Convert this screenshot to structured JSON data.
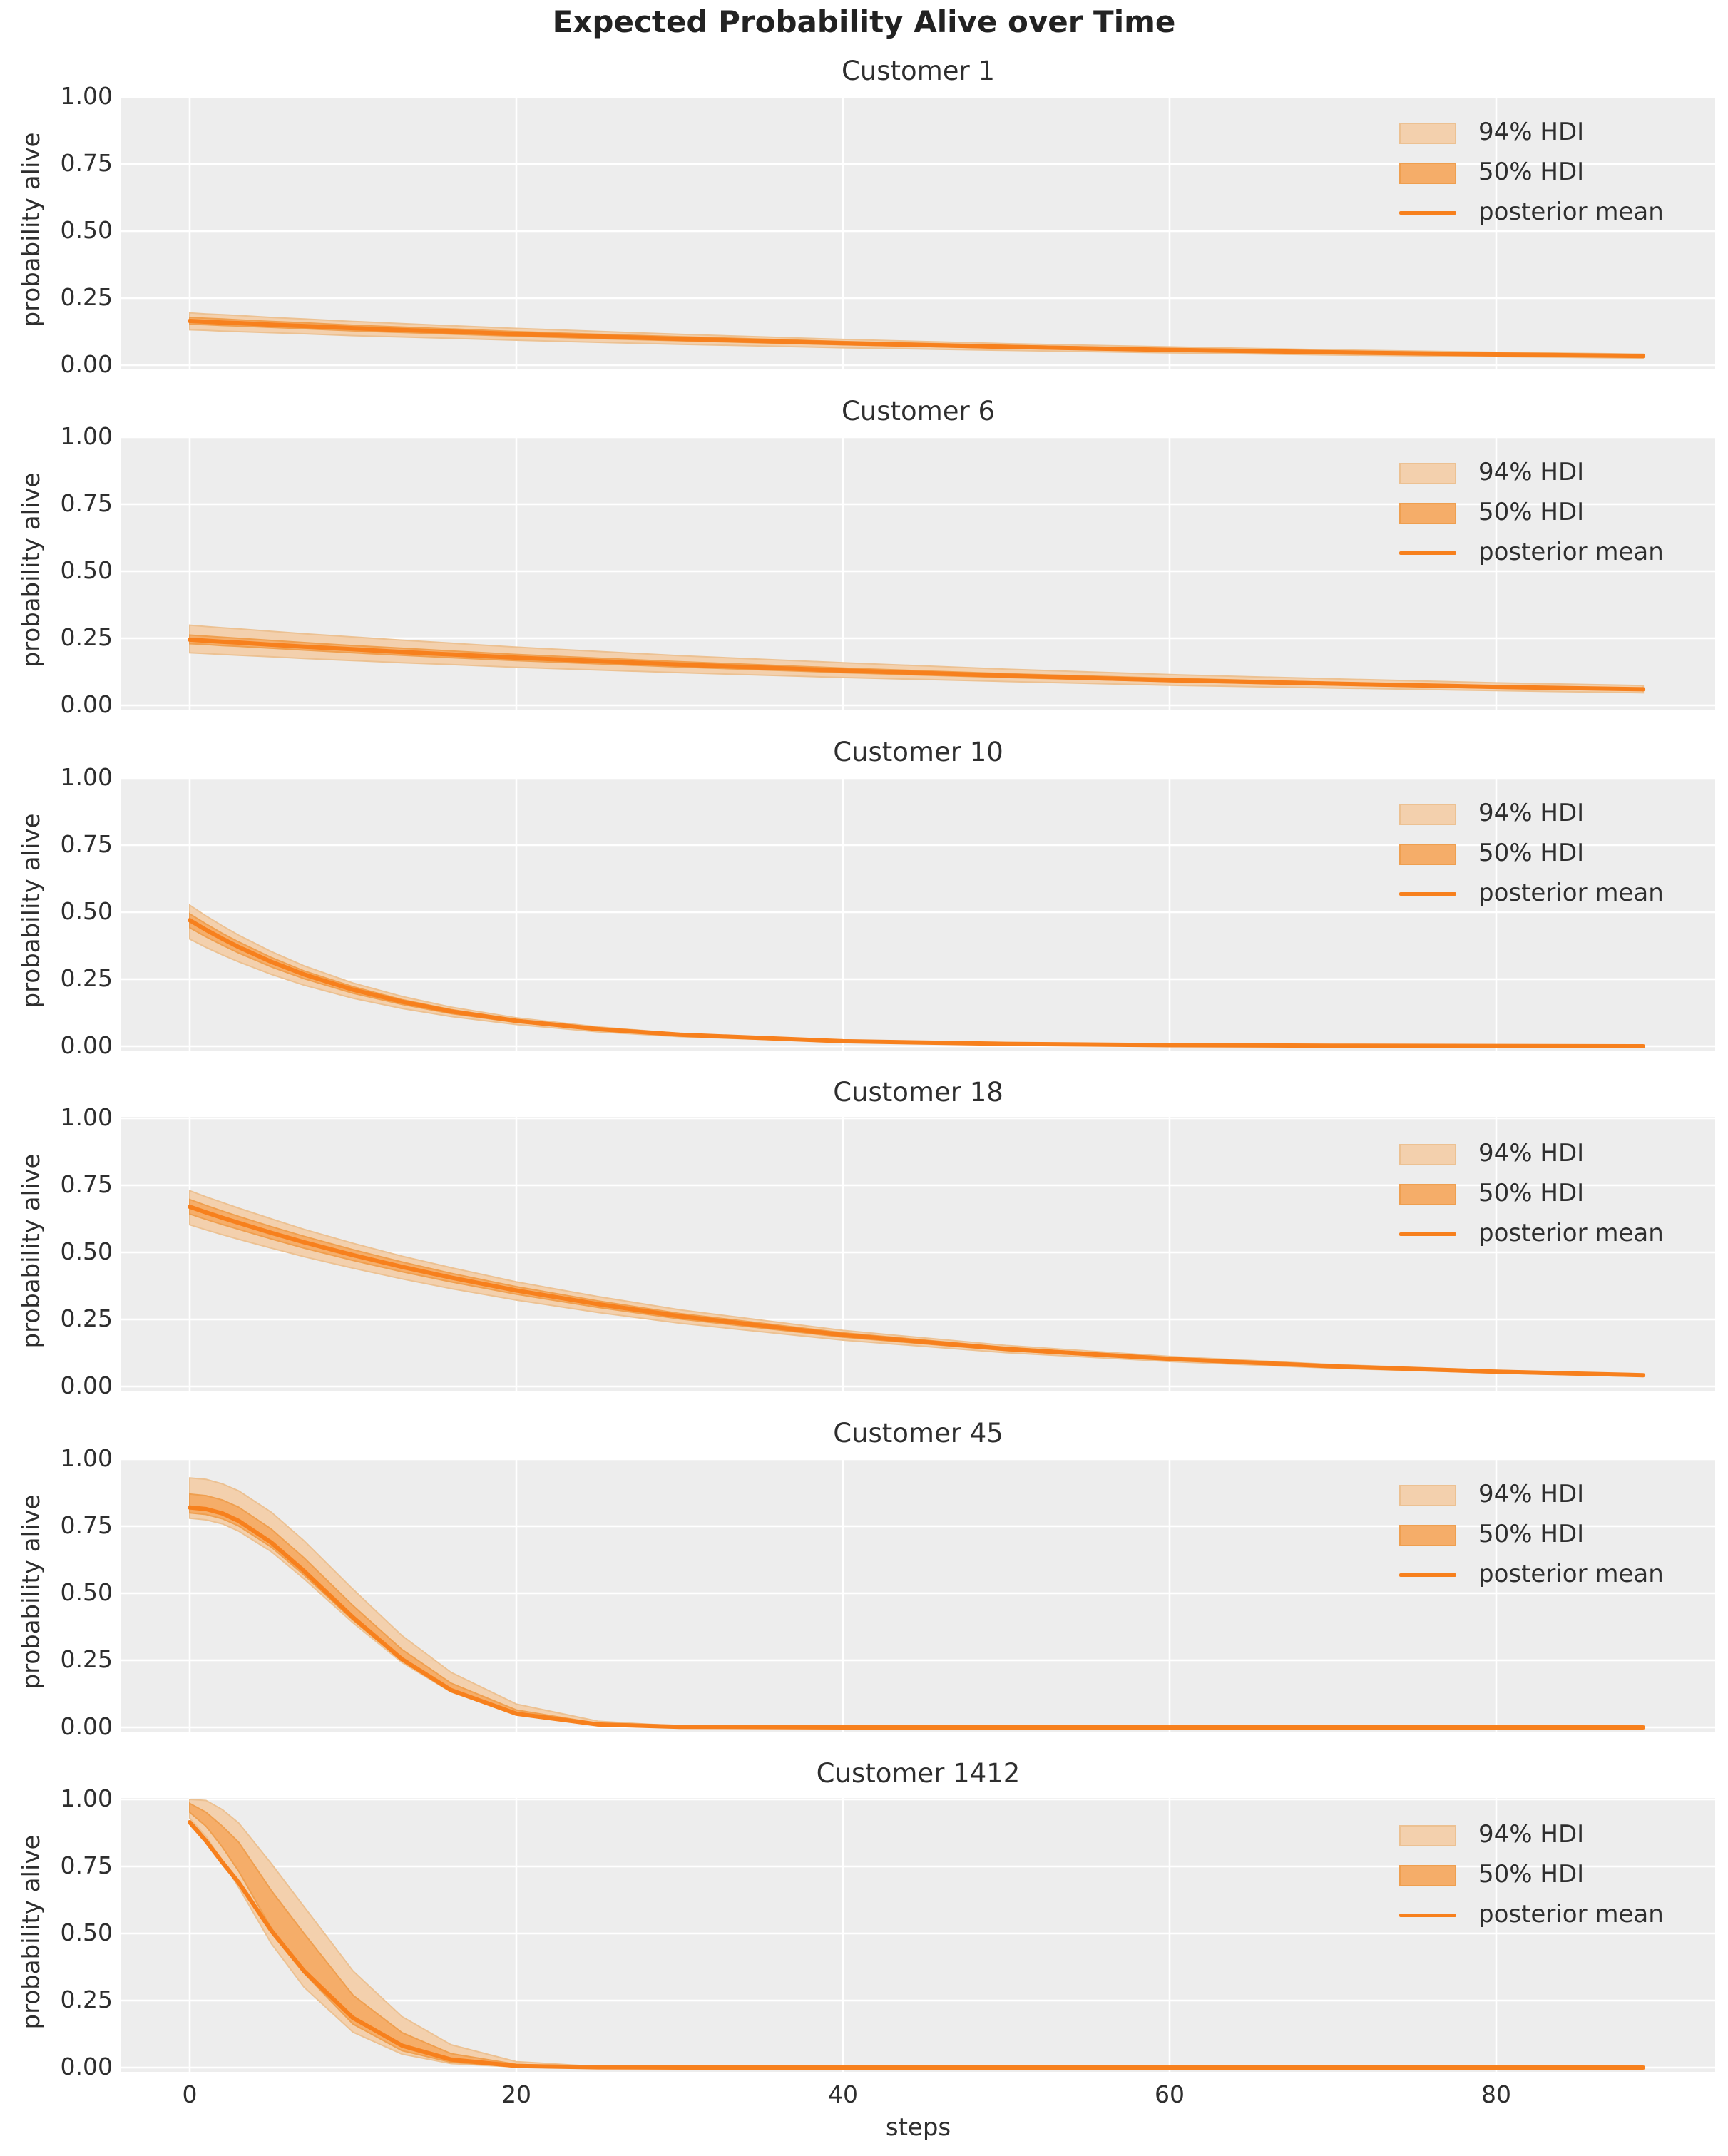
{
  "title": "Expected Probability Alive over Time",
  "xlabel": "steps",
  "ylabel": "probability alive",
  "legend": {
    "hdi94": "94% HDI",
    "hdi50": "50% HDI",
    "mean": "posterior mean"
  },
  "colors": {
    "posterior_mean": "#f7801d",
    "hdi50_fill": "#f5ad69",
    "hdi50_edge": "#ef9f4f",
    "hdi94_fill": "#f3d0ad",
    "hdi94_edge": "#ecc192",
    "axes_background": "#ededed",
    "grid": "#ffffff",
    "text": "#2e2e2e"
  },
  "y_ticks": [
    {
      "label": "1.00",
      "value": 1.0
    },
    {
      "label": "0.75",
      "value": 0.75
    },
    {
      "label": "0.50",
      "value": 0.5
    },
    {
      "label": "0.25",
      "value": 0.25
    },
    {
      "label": "0.00",
      "value": 0.0
    }
  ],
  "x_ticks": [
    {
      "label": "0",
      "value": 0
    },
    {
      "label": "20",
      "value": 20
    },
    {
      "label": "40",
      "value": 40
    },
    {
      "label": "60",
      "value": 60
    },
    {
      "label": "80",
      "value": 80
    }
  ],
  "chart_data": [
    {
      "type": "line",
      "title": "Customer 1",
      "xlabel": "steps",
      "ylabel": "probability alive",
      "xlim": [
        0,
        89
      ],
      "ylim": [
        0,
        1
      ],
      "legend_entries": [
        "94% HDI",
        "50% HDI",
        "posterior mean"
      ],
      "steps": [
        0,
        1,
        2,
        3,
        5,
        7,
        10,
        13,
        16,
        20,
        25,
        30,
        40,
        50,
        60,
        70,
        80,
        89
      ],
      "posterior_mean": [
        0.165,
        0.162,
        0.159,
        0.157,
        0.151,
        0.146,
        0.138,
        0.131,
        0.125,
        0.116,
        0.107,
        0.098,
        0.082,
        0.068,
        0.057,
        0.048,
        0.04,
        0.034
      ],
      "hdi94_lower": [
        0.132,
        0.13,
        0.127,
        0.125,
        0.121,
        0.117,
        0.11,
        0.105,
        0.1,
        0.093,
        0.085,
        0.078,
        0.065,
        0.055,
        0.046,
        0.038,
        0.032,
        0.026
      ],
      "hdi94_upper": [
        0.195,
        0.191,
        0.188,
        0.185,
        0.178,
        0.172,
        0.163,
        0.155,
        0.147,
        0.137,
        0.126,
        0.115,
        0.096,
        0.08,
        0.068,
        0.057,
        0.048,
        0.041
      ],
      "hdi50_lower": [
        0.153,
        0.151,
        0.148,
        0.146,
        0.141,
        0.136,
        0.128,
        0.122,
        0.116,
        0.108,
        0.099,
        0.091,
        0.076,
        0.063,
        0.053,
        0.045,
        0.037,
        0.031
      ],
      "hdi50_upper": [
        0.178,
        0.175,
        0.172,
        0.169,
        0.163,
        0.158,
        0.149,
        0.142,
        0.135,
        0.125,
        0.115,
        0.106,
        0.088,
        0.074,
        0.061,
        0.052,
        0.043,
        0.037
      ]
    },
    {
      "type": "line",
      "title": "Customer 6",
      "xlabel": "steps",
      "ylabel": "probability alive",
      "xlim": [
        0,
        89
      ],
      "ylim": [
        0,
        1
      ],
      "legend_entries": [
        "94% HDI",
        "50% HDI",
        "posterior mean"
      ],
      "steps": [
        0,
        1,
        2,
        3,
        5,
        7,
        10,
        13,
        16,
        20,
        25,
        30,
        40,
        50,
        60,
        70,
        80,
        89
      ],
      "posterior_mean": [
        0.245,
        0.241,
        0.237,
        0.234,
        0.226,
        0.219,
        0.209,
        0.199,
        0.19,
        0.178,
        0.165,
        0.152,
        0.13,
        0.111,
        0.094,
        0.081,
        0.069,
        0.06
      ],
      "hdi94_lower": [
        0.196,
        0.193,
        0.19,
        0.187,
        0.181,
        0.175,
        0.167,
        0.159,
        0.152,
        0.142,
        0.132,
        0.122,
        0.104,
        0.089,
        0.075,
        0.065,
        0.055,
        0.047
      ],
      "hdi94_upper": [
        0.299,
        0.294,
        0.289,
        0.285,
        0.276,
        0.267,
        0.255,
        0.243,
        0.232,
        0.217,
        0.201,
        0.185,
        0.159,
        0.135,
        0.115,
        0.099,
        0.084,
        0.074
      ],
      "hdi50_lower": [
        0.23,
        0.227,
        0.223,
        0.22,
        0.213,
        0.206,
        0.196,
        0.187,
        0.178,
        0.167,
        0.155,
        0.143,
        0.122,
        0.104,
        0.089,
        0.076,
        0.064,
        0.056
      ],
      "hdi50_upper": [
        0.262,
        0.258,
        0.254,
        0.25,
        0.242,
        0.234,
        0.223,
        0.213,
        0.203,
        0.19,
        0.176,
        0.163,
        0.139,
        0.118,
        0.101,
        0.086,
        0.073,
        0.064
      ]
    },
    {
      "type": "line",
      "title": "Customer 10",
      "xlabel": "steps",
      "ylabel": "probability alive",
      "xlim": [
        0,
        89
      ],
      "ylim": [
        0,
        1
      ],
      "legend_entries": [
        "94% HDI",
        "50% HDI",
        "posterior mean"
      ],
      "steps": [
        0,
        1,
        2,
        3,
        5,
        7,
        10,
        13,
        16,
        20,
        25,
        30,
        40,
        50,
        60,
        70,
        80,
        89
      ],
      "posterior_mean": [
        0.47,
        0.434,
        0.401,
        0.37,
        0.315,
        0.268,
        0.211,
        0.166,
        0.13,
        0.095,
        0.064,
        0.043,
        0.019,
        0.009,
        0.004,
        0.002,
        0.001,
        0.0
      ],
      "hdi94_lower": [
        0.4,
        0.369,
        0.341,
        0.315,
        0.268,
        0.228,
        0.179,
        0.141,
        0.111,
        0.081,
        0.054,
        0.036,
        0.016,
        0.008,
        0.003,
        0.002,
        0.001,
        0.0
      ],
      "hdi94_upper": [
        0.526,
        0.486,
        0.449,
        0.414,
        0.353,
        0.3,
        0.236,
        0.186,
        0.146,
        0.106,
        0.072,
        0.048,
        0.021,
        0.01,
        0.004,
        0.002,
        0.001,
        0.0
      ],
      "hdi50_lower": [
        0.442,
        0.408,
        0.377,
        0.348,
        0.296,
        0.252,
        0.198,
        0.156,
        0.122,
        0.089,
        0.06,
        0.04,
        0.018,
        0.008,
        0.004,
        0.002,
        0.001,
        0.0
      ],
      "hdi50_upper": [
        0.494,
        0.456,
        0.421,
        0.389,
        0.331,
        0.281,
        0.222,
        0.174,
        0.137,
        0.1,
        0.067,
        0.045,
        0.02,
        0.009,
        0.004,
        0.002,
        0.001,
        0.0
      ]
    },
    {
      "type": "line",
      "title": "Customer 18",
      "xlabel": "steps",
      "ylabel": "probability alive",
      "xlim": [
        0,
        89
      ],
      "ylim": [
        0,
        1
      ],
      "legend_entries": [
        "94% HDI",
        "50% HDI",
        "posterior mean"
      ],
      "steps": [
        0,
        1,
        2,
        3,
        5,
        7,
        10,
        13,
        16,
        20,
        25,
        30,
        40,
        50,
        60,
        70,
        80,
        89
      ],
      "posterior_mean": [
        0.67,
        0.649,
        0.629,
        0.61,
        0.573,
        0.538,
        0.49,
        0.446,
        0.406,
        0.358,
        0.307,
        0.262,
        0.192,
        0.14,
        0.103,
        0.075,
        0.055,
        0.042
      ],
      "hdi94_lower": [
        0.603,
        0.584,
        0.566,
        0.549,
        0.516,
        0.484,
        0.441,
        0.401,
        0.365,
        0.322,
        0.276,
        0.236,
        0.173,
        0.126,
        0.093,
        0.068,
        0.05,
        0.037
      ],
      "hdi94_upper": [
        0.73,
        0.707,
        0.686,
        0.665,
        0.625,
        0.586,
        0.534,
        0.486,
        0.443,
        0.39,
        0.335,
        0.286,
        0.209,
        0.153,
        0.112,
        0.082,
        0.06,
        0.046
      ],
      "hdi50_lower": [
        0.643,
        0.623,
        0.604,
        0.586,
        0.55,
        0.516,
        0.47,
        0.428,
        0.39,
        0.344,
        0.295,
        0.252,
        0.184,
        0.134,
        0.099,
        0.072,
        0.053,
        0.04
      ],
      "hdi50_upper": [
        0.697,
        0.675,
        0.654,
        0.634,
        0.596,
        0.56,
        0.51,
        0.464,
        0.422,
        0.372,
        0.319,
        0.272,
        0.2,
        0.146,
        0.107,
        0.078,
        0.057,
        0.044
      ]
    },
    {
      "type": "line",
      "title": "Customer 45",
      "xlabel": "steps",
      "ylabel": "probability alive",
      "xlim": [
        0,
        89
      ],
      "ylim": [
        0,
        1
      ],
      "legend_entries": [
        "94% HDI",
        "50% HDI",
        "posterior mean"
      ],
      "steps": [
        0,
        1,
        2,
        3,
        5,
        7,
        10,
        13,
        16,
        20,
        25,
        30,
        40,
        50,
        60,
        70,
        80,
        89
      ],
      "posterior_mean": [
        0.82,
        0.814,
        0.798,
        0.77,
        0.689,
        0.583,
        0.41,
        0.254,
        0.139,
        0.051,
        0.011,
        0.002,
        0.0,
        0.0,
        0.0,
        0.0,
        0.0,
        0.0
      ],
      "hdi94_lower": [
        0.78,
        0.774,
        0.759,
        0.732,
        0.655,
        0.554,
        0.39,
        0.242,
        0.132,
        0.049,
        0.01,
        0.002,
        0.0,
        0.0,
        0.0,
        0.0,
        0.0,
        0.0
      ],
      "hdi94_upper": [
        0.93,
        0.925,
        0.908,
        0.882,
        0.802,
        0.696,
        0.515,
        0.342,
        0.205,
        0.087,
        0.023,
        0.005,
        0.0,
        0.0,
        0.0,
        0.0,
        0.0,
        0.0
      ],
      "hdi50_lower": [
        0.8,
        0.794,
        0.778,
        0.751,
        0.672,
        0.568,
        0.4,
        0.248,
        0.136,
        0.05,
        0.011,
        0.002,
        0.0,
        0.0,
        0.0,
        0.0,
        0.0,
        0.0
      ],
      "hdi50_upper": [
        0.87,
        0.864,
        0.848,
        0.821,
        0.739,
        0.632,
        0.454,
        0.29,
        0.165,
        0.065,
        0.015,
        0.003,
        0.0,
        0.0,
        0.0,
        0.0,
        0.0,
        0.0
      ]
    },
    {
      "type": "line",
      "title": "Customer 1412",
      "xlabel": "steps",
      "ylabel": "probability alive",
      "xlim": [
        0,
        89
      ],
      "ylim": [
        0,
        1
      ],
      "legend_entries": [
        "94% HDI",
        "50% HDI",
        "posterior mean"
      ],
      "steps": [
        0,
        1,
        2,
        3,
        5,
        7,
        10,
        13,
        16,
        20,
        25,
        30,
        40,
        50,
        60,
        70,
        80,
        89
      ],
      "posterior_mean": [
        0.915,
        0.845,
        0.765,
        0.69,
        0.51,
        0.36,
        0.185,
        0.082,
        0.03,
        0.006,
        0.001,
        0.0,
        0.0,
        0.0,
        0.0,
        0.0,
        0.0,
        0.0
      ],
      "hdi94_lower": [
        0.93,
        0.862,
        0.77,
        0.672,
        0.462,
        0.3,
        0.132,
        0.05,
        0.015,
        0.002,
        0.0,
        0.0,
        0.0,
        0.0,
        0.0,
        0.0,
        0.0,
        0.0
      ],
      "hdi94_upper": [
        1.0,
        0.996,
        0.962,
        0.912,
        0.76,
        0.6,
        0.36,
        0.19,
        0.085,
        0.022,
        0.004,
        0.0,
        0.0,
        0.0,
        0.0,
        0.0,
        0.0,
        0.0
      ],
      "hdi50_lower": [
        0.952,
        0.9,
        0.822,
        0.732,
        0.52,
        0.352,
        0.162,
        0.063,
        0.02,
        0.003,
        0.0,
        0.0,
        0.0,
        0.0,
        0.0,
        0.0,
        0.0,
        0.0
      ],
      "hdi50_upper": [
        0.985,
        0.952,
        0.9,
        0.84,
        0.66,
        0.5,
        0.27,
        0.13,
        0.052,
        0.012,
        0.002,
        0.0,
        0.0,
        0.0,
        0.0,
        0.0,
        0.0,
        0.0
      ]
    }
  ]
}
